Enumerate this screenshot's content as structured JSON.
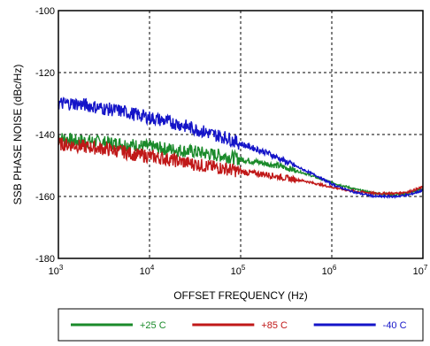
{
  "chart_data": {
    "type": "line",
    "xlabel": "OFFSET FREQUENCY (Hz)",
    "ylabel": "SSB PHASE NOISE (dBc/Hz)",
    "x_scale": "log",
    "xlim": [
      1000,
      10000000
    ],
    "ylim": [
      -180,
      -100
    ],
    "grid": true,
    "legend_position": "bottom",
    "x_ticks": [
      {
        "value": 1000,
        "base": "10",
        "exp": "3"
      },
      {
        "value": 10000,
        "base": "10",
        "exp": "4"
      },
      {
        "value": 100000,
        "base": "10",
        "exp": "5"
      },
      {
        "value": 1000000,
        "base": "10",
        "exp": "6"
      },
      {
        "value": 10000000,
        "base": "10",
        "exp": "7"
      }
    ],
    "y_ticks": [
      {
        "value": -100,
        "label": "-100"
      },
      {
        "value": -120,
        "label": "-120"
      },
      {
        "value": -140,
        "label": "-140"
      },
      {
        "value": -160,
        "label": "-160"
      },
      {
        "value": -180,
        "label": "-180"
      }
    ],
    "series": [
      {
        "name": "+25 C",
        "color": "#1a8a2a",
        "points": [
          [
            1000,
            -141
          ],
          [
            1500,
            -142
          ],
          [
            2000,
            -142
          ],
          [
            3000,
            -142.5
          ],
          [
            5000,
            -143
          ],
          [
            7000,
            -143.5
          ],
          [
            10000,
            -144
          ],
          [
            20000,
            -145
          ],
          [
            30000,
            -145.5
          ],
          [
            50000,
            -146.5
          ],
          [
            70000,
            -147
          ],
          [
            100000,
            -148
          ],
          [
            200000,
            -149.5
          ],
          [
            300000,
            -150.5
          ],
          [
            500000,
            -152.5
          ],
          [
            700000,
            -154
          ],
          [
            1000000,
            -155.5
          ],
          [
            1500000,
            -157
          ],
          [
            2000000,
            -158
          ],
          [
            3000000,
            -159
          ],
          [
            5000000,
            -159.5
          ],
          [
            7000000,
            -159
          ],
          [
            10000000,
            -157.5
          ]
        ]
      },
      {
        "name": "+85 C",
        "color": "#c01818",
        "points": [
          [
            1000,
            -143
          ],
          [
            1500,
            -143.5
          ],
          [
            2000,
            -144
          ],
          [
            3000,
            -144.5
          ],
          [
            5000,
            -145.5
          ],
          [
            7000,
            -146.5
          ],
          [
            10000,
            -147
          ],
          [
            20000,
            -148.5
          ],
          [
            30000,
            -149.5
          ],
          [
            50000,
            -150.5
          ],
          [
            70000,
            -151
          ],
          [
            100000,
            -152
          ],
          [
            200000,
            -153
          ],
          [
            300000,
            -154
          ],
          [
            500000,
            -155
          ],
          [
            700000,
            -156
          ],
          [
            1000000,
            -157
          ],
          [
            1500000,
            -158
          ],
          [
            2000000,
            -158.5
          ],
          [
            3000000,
            -159
          ],
          [
            5000000,
            -159
          ],
          [
            7000000,
            -158.5
          ],
          [
            10000000,
            -157
          ]
        ]
      },
      {
        "name": "-40 C",
        "color": "#1414c8",
        "points": [
          [
            1000,
            -130
          ],
          [
            1500,
            -130
          ],
          [
            2000,
            -130.5
          ],
          [
            3000,
            -131.5
          ],
          [
            5000,
            -132.5
          ],
          [
            7000,
            -133.5
          ],
          [
            10000,
            -134.5
          ],
          [
            20000,
            -136.5
          ],
          [
            30000,
            -138
          ],
          [
            50000,
            -140
          ],
          [
            70000,
            -141
          ],
          [
            100000,
            -143
          ],
          [
            200000,
            -146
          ],
          [
            300000,
            -148.5
          ],
          [
            500000,
            -151.5
          ],
          [
            700000,
            -153.5
          ],
          [
            1000000,
            -156
          ],
          [
            1500000,
            -158
          ],
          [
            2000000,
            -159
          ],
          [
            3000000,
            -160
          ],
          [
            5000000,
            -160
          ],
          [
            7000000,
            -159.5
          ],
          [
            10000000,
            -158
          ]
        ]
      }
    ]
  }
}
